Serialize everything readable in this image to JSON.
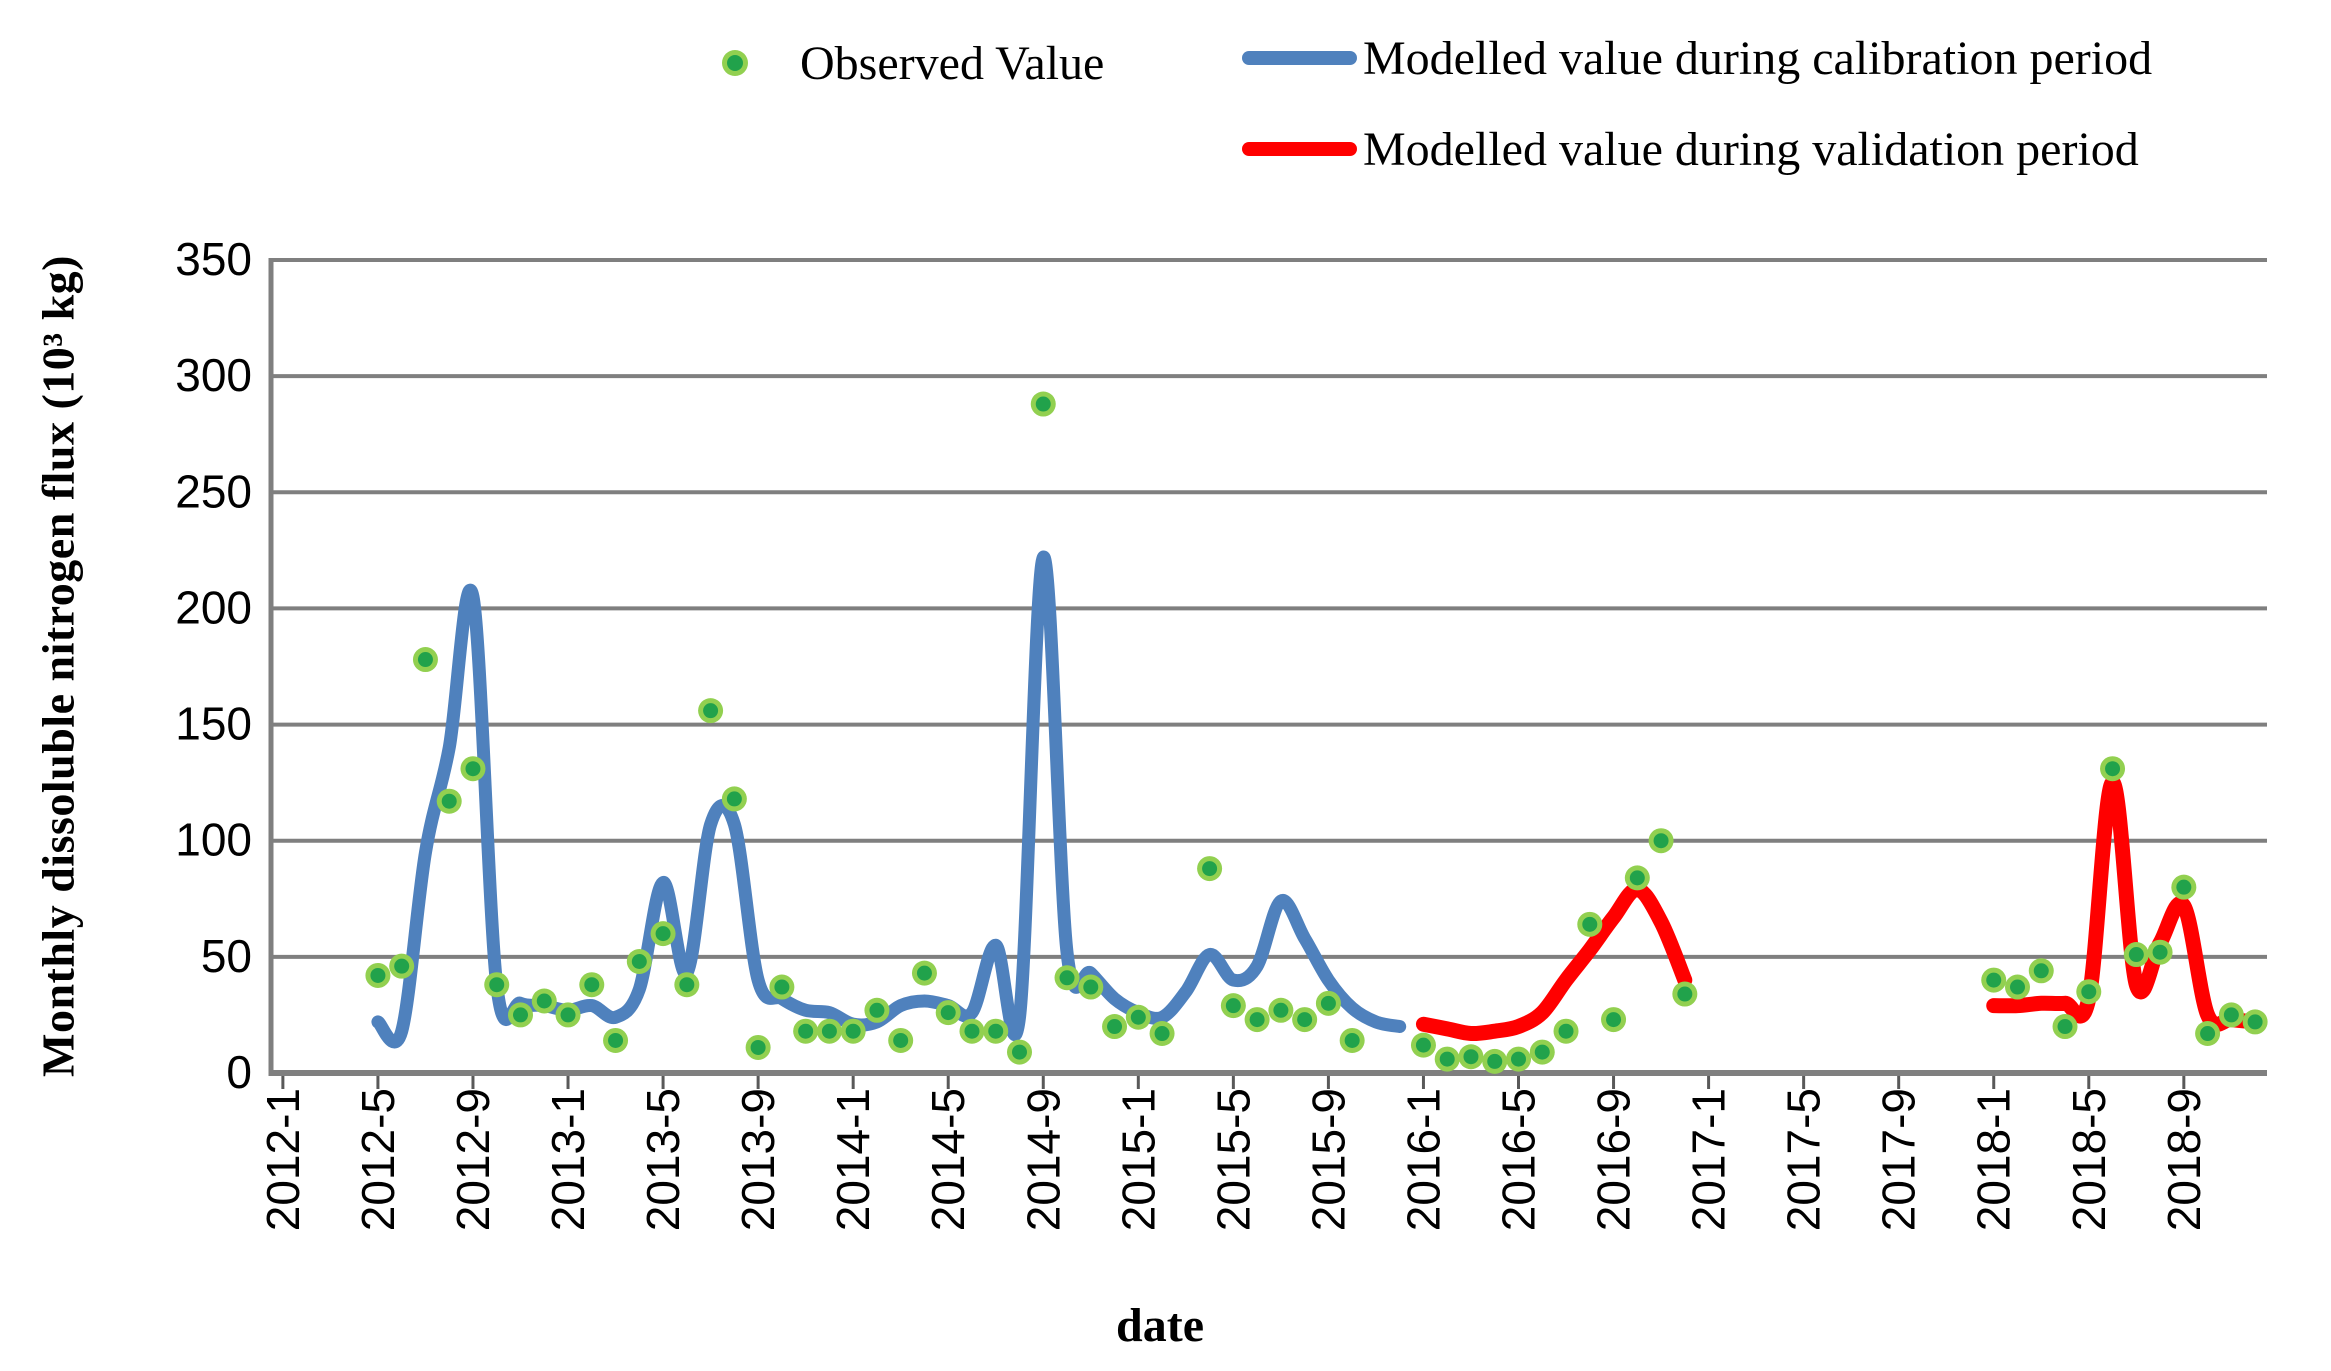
{
  "figure": {
    "background": "#ffffff",
    "grid_color": "#7f7f7f",
    "tick_color": "#595959",
    "text_color": "#000000"
  },
  "legend": {
    "observed": {
      "label": "Observed Value",
      "marker_fill": "#21a24b",
      "marker_border": "#92d050"
    },
    "calibration": {
      "label": "Modelled value during calibration period",
      "color": "#4f81bd"
    },
    "validation": {
      "label": "Modelled value during validation period",
      "color": "#ff0000"
    }
  },
  "axes": {
    "xlabel": "date",
    "ylabel": "Monthly dissoluble nitrogen flux  (10³ kg)"
  },
  "chart_data": {
    "type": "line+scatter",
    "title": "",
    "xlabel": "date",
    "ylabel": "Monthly dissoluble nitrogen flux (10^3 kg)",
    "ylim": [
      0,
      350
    ],
    "ytick_step": 50,
    "ytick_labels": [
      "0",
      "50",
      "100",
      "150",
      "200",
      "250",
      "300",
      "350"
    ],
    "x_domain_months": [
      "2012-1",
      "2018-12"
    ],
    "xtick_labels": [
      "2012-1",
      "2012-5",
      "2012-9",
      "2013-1",
      "2013-5",
      "2013-9",
      "2014-1",
      "2014-5",
      "2014-9",
      "2015-1",
      "2015-5",
      "2015-9",
      "2016-1",
      "2016-5",
      "2016-9",
      "2017-1",
      "2017-5",
      "2017-9",
      "2018-1",
      "2018-5",
      "2018-9"
    ],
    "grid": true,
    "legend_position": "top",
    "series": [
      {
        "name": "Observed Value",
        "type": "scatter",
        "marker_fill": "#21a24b",
        "marker_border": "#92d050",
        "points": [
          [
            "2012-5",
            42
          ],
          [
            "2012-6",
            46
          ],
          [
            "2012-7",
            178
          ],
          [
            "2012-8",
            117
          ],
          [
            "2012-9",
            131
          ],
          [
            "2012-10",
            38
          ],
          [
            "2012-11",
            25
          ],
          [
            "2012-12",
            31
          ],
          [
            "2013-1",
            25
          ],
          [
            "2013-2",
            38
          ],
          [
            "2013-3",
            14
          ],
          [
            "2013-4",
            48
          ],
          [
            "2013-5",
            60
          ],
          [
            "2013-6",
            38
          ],
          [
            "2013-7",
            156
          ],
          [
            "2013-8",
            118
          ],
          [
            "2013-9",
            11
          ],
          [
            "2013-10",
            37
          ],
          [
            "2013-11",
            18
          ],
          [
            "2013-12",
            18
          ],
          [
            "2014-1",
            18
          ],
          [
            "2014-2",
            27
          ],
          [
            "2014-3",
            14
          ],
          [
            "2014-4",
            43
          ],
          [
            "2014-5",
            26
          ],
          [
            "2014-6",
            18
          ],
          [
            "2014-7",
            18
          ],
          [
            "2014-8",
            9
          ],
          [
            "2014-9",
            288
          ],
          [
            "2014-10",
            41
          ],
          [
            "2014-11",
            37
          ],
          [
            "2014-12",
            20
          ],
          [
            "2015-1",
            24
          ],
          [
            "2015-2",
            17
          ],
          [
            "2015-4",
            88
          ],
          [
            "2015-5",
            29
          ],
          [
            "2015-6",
            23
          ],
          [
            "2015-7",
            27
          ],
          [
            "2015-8",
            23
          ],
          [
            "2015-9",
            30
          ],
          [
            "2015-10",
            14
          ],
          [
            "2016-1",
            12
          ],
          [
            "2016-2",
            6
          ],
          [
            "2016-3",
            7
          ],
          [
            "2016-4",
            5
          ],
          [
            "2016-5",
            6
          ],
          [
            "2016-6",
            9
          ],
          [
            "2016-7",
            18
          ],
          [
            "2016-8",
            64
          ],
          [
            "2016-9",
            23
          ],
          [
            "2016-10",
            84
          ],
          [
            "2016-11",
            100
          ],
          [
            "2016-12",
            34
          ],
          [
            "2018-1",
            40
          ],
          [
            "2018-2",
            37
          ],
          [
            "2018-3",
            44
          ],
          [
            "2018-4",
            20
          ],
          [
            "2018-5",
            35
          ],
          [
            "2018-6",
            131
          ],
          [
            "2018-7",
            51
          ],
          [
            "2018-8",
            52
          ],
          [
            "2018-9",
            80
          ],
          [
            "2018-10",
            17
          ],
          [
            "2018-11",
            25
          ],
          [
            "2018-12",
            22
          ]
        ]
      },
      {
        "name": "Modelled value during calibration period",
        "type": "line",
        "color": "#4f81bd",
        "width": 13,
        "smooth": true,
        "segments": [
          [
            [
              "2012-5",
              22
            ],
            [
              "2012-6",
              18
            ],
            [
              "2012-7",
              95
            ],
            [
              "2012-8",
              140
            ],
            [
              "2012-9",
              205
            ],
            [
              "2012-10",
              38
            ],
            [
              "2012-11",
              30
            ],
            [
              "2012-12",
              29
            ],
            [
              "2013-1",
              27
            ],
            [
              "2013-2",
              29
            ],
            [
              "2013-3",
              24
            ],
            [
              "2013-4",
              36
            ],
            [
              "2013-5",
              82
            ],
            [
              "2013-6",
              43
            ],
            [
              "2013-7",
              107
            ],
            [
              "2013-8",
              107
            ],
            [
              "2013-9",
              40
            ],
            [
              "2013-10",
              32
            ],
            [
              "2013-11",
              27
            ],
            [
              "2013-12",
              26
            ],
            [
              "2014-1",
              21
            ],
            [
              "2014-2",
              22
            ],
            [
              "2014-3",
              29
            ],
            [
              "2014-4",
              31
            ],
            [
              "2014-5",
              29
            ],
            [
              "2014-6",
              26
            ],
            [
              "2014-7",
              55
            ],
            [
              "2014-8",
              24
            ],
            [
              "2014-9",
              222
            ],
            [
              "2014-10",
              52
            ],
            [
              "2014-11",
              43
            ],
            [
              "2014-12",
              32
            ],
            [
              "2015-1",
              26
            ],
            [
              "2015-2",
              24
            ],
            [
              "2015-3",
              35
            ],
            [
              "2015-4",
              51
            ],
            [
              "2015-5",
              40
            ],
            [
              "2015-6",
              46
            ],
            [
              "2015-7",
              74
            ],
            [
              "2015-8",
              58
            ],
            [
              "2015-9",
              40
            ],
            [
              "2015-10",
              28
            ],
            [
              "2015-11",
              22
            ],
            [
              "2015-12",
              20
            ]
          ]
        ]
      },
      {
        "name": "Modelled value during validation period",
        "type": "line",
        "color": "#ff0000",
        "width": 15,
        "smooth": true,
        "segments": [
          [
            [
              "2016-1",
              21
            ],
            [
              "2016-2",
              19
            ],
            [
              "2016-3",
              17
            ],
            [
              "2016-4",
              18
            ],
            [
              "2016-5",
              20
            ],
            [
              "2016-6",
              26
            ],
            [
              "2016-7",
              40
            ],
            [
              "2016-8",
              53
            ],
            [
              "2016-9",
              67
            ],
            [
              "2016-10",
              79
            ],
            [
              "2016-11",
              65
            ],
            [
              "2016-12",
              40
            ]
          ],
          [
            [
              "2018-1",
              29
            ],
            [
              "2018-2",
              29
            ],
            [
              "2018-3",
              30
            ],
            [
              "2018-4",
              30
            ],
            [
              "2018-5",
              32
            ],
            [
              "2018-6",
              125
            ],
            [
              "2018-7",
              38
            ],
            [
              "2018-8",
              56
            ],
            [
              "2018-9",
              72
            ],
            [
              "2018-10",
              25
            ],
            [
              "2018-11",
              23
            ],
            [
              "2018-12",
              22
            ]
          ]
        ]
      }
    ]
  }
}
